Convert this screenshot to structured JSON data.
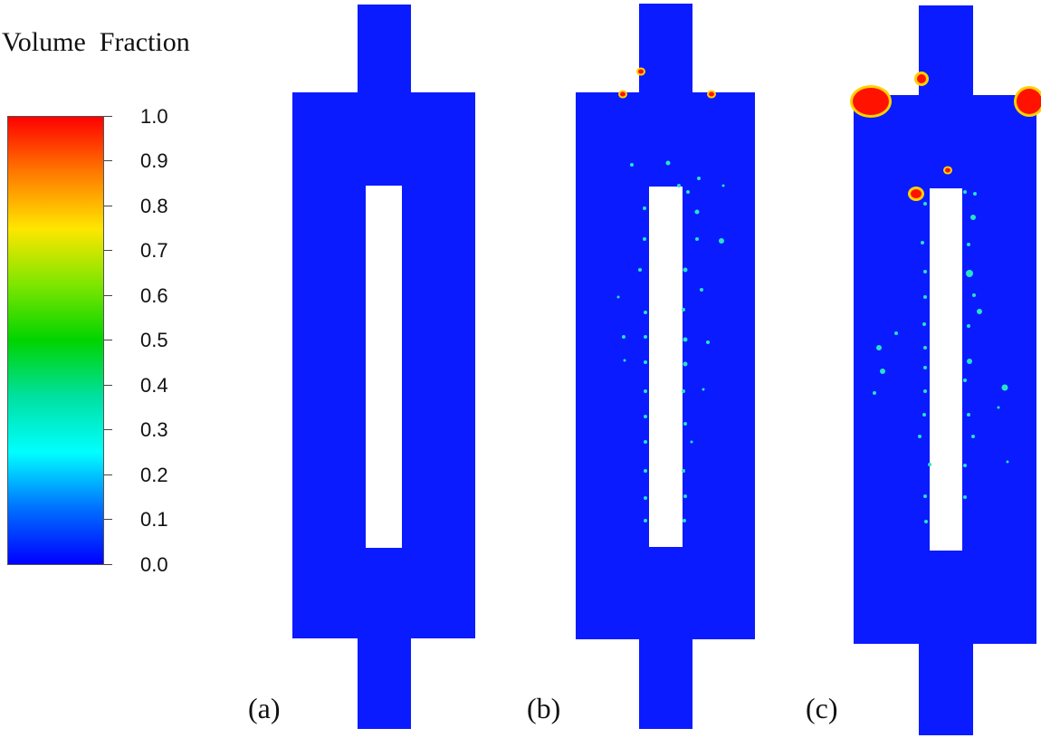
{
  "colorbar": {
    "title": "Volume  Fraction",
    "ticks": [
      "1.0",
      "0.9",
      "0.8",
      "0.7",
      "0.6",
      "0.5",
      "0.4",
      "0.3",
      "0.2",
      "0.1",
      "0.0"
    ],
    "gradient_stops": [
      "#ff0000",
      "#ff7a00",
      "#ffe600",
      "#7ee600",
      "#00d400",
      "#00e0a0",
      "#00ffff",
      "#0070ff",
      "#0000ff"
    ]
  },
  "colors": {
    "fluid": "#0a1bff",
    "hole": "#ffffff",
    "bubble_edge": "#27e3c4",
    "bubble_core": "#ff1200",
    "bubble_rim": "#ffd000"
  },
  "panels": [
    {
      "label": "(a)",
      "state": "no gas phase"
    },
    {
      "label": "(b)",
      "state": "small bubbles forming"
    },
    {
      "label": "(c)",
      "state": "bubbles coalescing at top corners"
    }
  ]
}
